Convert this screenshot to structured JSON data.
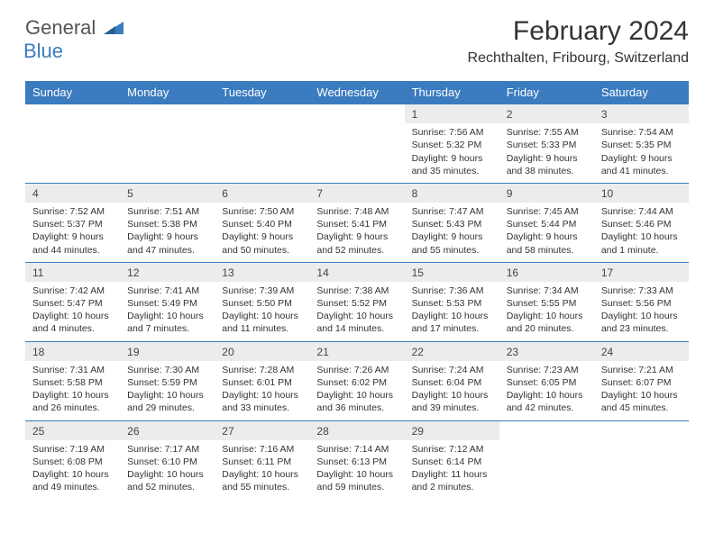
{
  "logo": {
    "word1": "General",
    "word2": "Blue"
  },
  "title": "February 2024",
  "location": "Rechthalten, Fribourg, Switzerland",
  "colors": {
    "accent": "#3b7bbf",
    "headerBg": "#3b7bbf",
    "headerText": "#ffffff",
    "dayNumBg": "#ececec",
    "text": "#333333"
  },
  "dayNames": [
    "Sunday",
    "Monday",
    "Tuesday",
    "Wednesday",
    "Thursday",
    "Friday",
    "Saturday"
  ],
  "weeks": [
    [
      null,
      null,
      null,
      null,
      {
        "n": "1",
        "sr": "Sunrise: 7:56 AM",
        "ss": "Sunset: 5:32 PM",
        "d1": "Daylight: 9 hours",
        "d2": "and 35 minutes."
      },
      {
        "n": "2",
        "sr": "Sunrise: 7:55 AM",
        "ss": "Sunset: 5:33 PM",
        "d1": "Daylight: 9 hours",
        "d2": "and 38 minutes."
      },
      {
        "n": "3",
        "sr": "Sunrise: 7:54 AM",
        "ss": "Sunset: 5:35 PM",
        "d1": "Daylight: 9 hours",
        "d2": "and 41 minutes."
      }
    ],
    [
      {
        "n": "4",
        "sr": "Sunrise: 7:52 AM",
        "ss": "Sunset: 5:37 PM",
        "d1": "Daylight: 9 hours",
        "d2": "and 44 minutes."
      },
      {
        "n": "5",
        "sr": "Sunrise: 7:51 AM",
        "ss": "Sunset: 5:38 PM",
        "d1": "Daylight: 9 hours",
        "d2": "and 47 minutes."
      },
      {
        "n": "6",
        "sr": "Sunrise: 7:50 AM",
        "ss": "Sunset: 5:40 PM",
        "d1": "Daylight: 9 hours",
        "d2": "and 50 minutes."
      },
      {
        "n": "7",
        "sr": "Sunrise: 7:48 AM",
        "ss": "Sunset: 5:41 PM",
        "d1": "Daylight: 9 hours",
        "d2": "and 52 minutes."
      },
      {
        "n": "8",
        "sr": "Sunrise: 7:47 AM",
        "ss": "Sunset: 5:43 PM",
        "d1": "Daylight: 9 hours",
        "d2": "and 55 minutes."
      },
      {
        "n": "9",
        "sr": "Sunrise: 7:45 AM",
        "ss": "Sunset: 5:44 PM",
        "d1": "Daylight: 9 hours",
        "d2": "and 58 minutes."
      },
      {
        "n": "10",
        "sr": "Sunrise: 7:44 AM",
        "ss": "Sunset: 5:46 PM",
        "d1": "Daylight: 10 hours",
        "d2": "and 1 minute."
      }
    ],
    [
      {
        "n": "11",
        "sr": "Sunrise: 7:42 AM",
        "ss": "Sunset: 5:47 PM",
        "d1": "Daylight: 10 hours",
        "d2": "and 4 minutes."
      },
      {
        "n": "12",
        "sr": "Sunrise: 7:41 AM",
        "ss": "Sunset: 5:49 PM",
        "d1": "Daylight: 10 hours",
        "d2": "and 7 minutes."
      },
      {
        "n": "13",
        "sr": "Sunrise: 7:39 AM",
        "ss": "Sunset: 5:50 PM",
        "d1": "Daylight: 10 hours",
        "d2": "and 11 minutes."
      },
      {
        "n": "14",
        "sr": "Sunrise: 7:38 AM",
        "ss": "Sunset: 5:52 PM",
        "d1": "Daylight: 10 hours",
        "d2": "and 14 minutes."
      },
      {
        "n": "15",
        "sr": "Sunrise: 7:36 AM",
        "ss": "Sunset: 5:53 PM",
        "d1": "Daylight: 10 hours",
        "d2": "and 17 minutes."
      },
      {
        "n": "16",
        "sr": "Sunrise: 7:34 AM",
        "ss": "Sunset: 5:55 PM",
        "d1": "Daylight: 10 hours",
        "d2": "and 20 minutes."
      },
      {
        "n": "17",
        "sr": "Sunrise: 7:33 AM",
        "ss": "Sunset: 5:56 PM",
        "d1": "Daylight: 10 hours",
        "d2": "and 23 minutes."
      }
    ],
    [
      {
        "n": "18",
        "sr": "Sunrise: 7:31 AM",
        "ss": "Sunset: 5:58 PM",
        "d1": "Daylight: 10 hours",
        "d2": "and 26 minutes."
      },
      {
        "n": "19",
        "sr": "Sunrise: 7:30 AM",
        "ss": "Sunset: 5:59 PM",
        "d1": "Daylight: 10 hours",
        "d2": "and 29 minutes."
      },
      {
        "n": "20",
        "sr": "Sunrise: 7:28 AM",
        "ss": "Sunset: 6:01 PM",
        "d1": "Daylight: 10 hours",
        "d2": "and 33 minutes."
      },
      {
        "n": "21",
        "sr": "Sunrise: 7:26 AM",
        "ss": "Sunset: 6:02 PM",
        "d1": "Daylight: 10 hours",
        "d2": "and 36 minutes."
      },
      {
        "n": "22",
        "sr": "Sunrise: 7:24 AM",
        "ss": "Sunset: 6:04 PM",
        "d1": "Daylight: 10 hours",
        "d2": "and 39 minutes."
      },
      {
        "n": "23",
        "sr": "Sunrise: 7:23 AM",
        "ss": "Sunset: 6:05 PM",
        "d1": "Daylight: 10 hours",
        "d2": "and 42 minutes."
      },
      {
        "n": "24",
        "sr": "Sunrise: 7:21 AM",
        "ss": "Sunset: 6:07 PM",
        "d1": "Daylight: 10 hours",
        "d2": "and 45 minutes."
      }
    ],
    [
      {
        "n": "25",
        "sr": "Sunrise: 7:19 AM",
        "ss": "Sunset: 6:08 PM",
        "d1": "Daylight: 10 hours",
        "d2": "and 49 minutes."
      },
      {
        "n": "26",
        "sr": "Sunrise: 7:17 AM",
        "ss": "Sunset: 6:10 PM",
        "d1": "Daylight: 10 hours",
        "d2": "and 52 minutes."
      },
      {
        "n": "27",
        "sr": "Sunrise: 7:16 AM",
        "ss": "Sunset: 6:11 PM",
        "d1": "Daylight: 10 hours",
        "d2": "and 55 minutes."
      },
      {
        "n": "28",
        "sr": "Sunrise: 7:14 AM",
        "ss": "Sunset: 6:13 PM",
        "d1": "Daylight: 10 hours",
        "d2": "and 59 minutes."
      },
      {
        "n": "29",
        "sr": "Sunrise: 7:12 AM",
        "ss": "Sunset: 6:14 PM",
        "d1": "Daylight: 11 hours",
        "d2": "and 2 minutes."
      },
      null,
      null
    ]
  ]
}
